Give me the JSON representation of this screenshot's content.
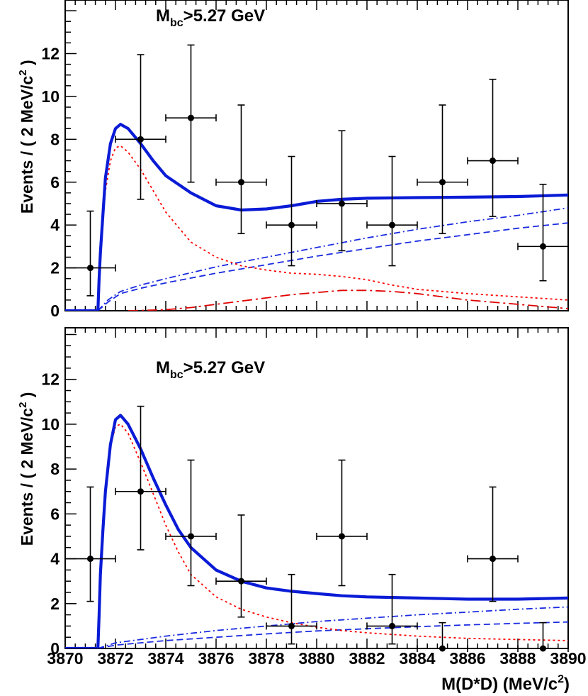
{
  "chart_data": [
    {
      "type": "scatter",
      "annotation": "M_bc>5.27 GeV",
      "annotation_main": "M",
      "annotation_sub": "bc",
      "annotation_rest": ">5.27 GeV",
      "ylabel_main": "Events / ( 2 MeV/c",
      "ylabel_sup": "2",
      "ylabel_close": " )",
      "xlim": [
        3870,
        3890
      ],
      "ylim": [
        0,
        14
      ],
      "x_ticks": [
        3870,
        3872,
        3874,
        3876,
        3878,
        3880,
        3882,
        3884,
        3886,
        3888,
        3890
      ],
      "y_ticks": [
        0,
        2,
        4,
        6,
        8,
        10,
        12
      ],
      "y_tick_labels": [
        "0",
        "2",
        "4",
        "6",
        "8",
        "10",
        "12"
      ],
      "points": [
        {
          "x": 3871,
          "y": 2,
          "yerr_low": 1.3,
          "yerr_high": 2.65
        },
        {
          "x": 3873,
          "y": 8,
          "yerr_low": 2.8,
          "yerr_high": 3.95
        },
        {
          "x": 3875,
          "y": 9,
          "yerr_low": 3.0,
          "yerr_high": 3.4
        },
        {
          "x": 3877,
          "y": 6,
          "yerr_low": 2.4,
          "yerr_high": 3.6
        },
        {
          "x": 3879,
          "y": 4,
          "yerr_low": 1.9,
          "yerr_high": 3.2
        },
        {
          "x": 3881,
          "y": 5,
          "yerr_low": 2.2,
          "yerr_high": 3.4
        },
        {
          "x": 3883,
          "y": 4,
          "yerr_low": 1.9,
          "yerr_high": 3.2
        },
        {
          "x": 3885,
          "y": 6,
          "yerr_low": 2.4,
          "yerr_high": 3.6
        },
        {
          "x": 3887,
          "y": 7,
          "yerr_low": 2.6,
          "yerr_high": 3.8
        },
        {
          "x": 3889,
          "y": 3,
          "yerr_low": 1.6,
          "yerr_high": 2.9
        }
      ],
      "curves": {
        "total": [
          [
            3870,
            0
          ],
          [
            3871.3,
            0
          ],
          [
            3871.35,
            1.5
          ],
          [
            3871.4,
            2.7
          ],
          [
            3871.5,
            4.5
          ],
          [
            3871.6,
            6.2
          ],
          [
            3871.8,
            7.8
          ],
          [
            3872.0,
            8.5
          ],
          [
            3872.2,
            8.7
          ],
          [
            3872.5,
            8.5
          ],
          [
            3873,
            7.8
          ],
          [
            3873.5,
            7.0
          ],
          [
            3874,
            6.3
          ],
          [
            3875,
            5.5
          ],
          [
            3876,
            4.9
          ],
          [
            3877,
            4.7
          ],
          [
            3878,
            4.75
          ],
          [
            3879,
            4.9
          ],
          [
            3880,
            5.1
          ],
          [
            3881,
            5.2
          ],
          [
            3882,
            5.25
          ],
          [
            3884,
            5.28
          ],
          [
            3886,
            5.3
          ],
          [
            3888,
            5.33
          ],
          [
            3890,
            5.4
          ]
        ],
        "signal_red": [
          [
            3870,
            0
          ],
          [
            3871.3,
            0
          ],
          [
            3871.35,
            1.5
          ],
          [
            3871.4,
            2.7
          ],
          [
            3871.5,
            4.3
          ],
          [
            3871.6,
            5.6
          ],
          [
            3871.8,
            7.0
          ],
          [
            3872.0,
            7.6
          ],
          [
            3872.2,
            7.7
          ],
          [
            3872.5,
            7.4
          ],
          [
            3873,
            6.6
          ],
          [
            3873.5,
            5.6
          ],
          [
            3874,
            4.6
          ],
          [
            3875,
            3.2
          ],
          [
            3876,
            2.5
          ],
          [
            3877,
            2.1
          ],
          [
            3878,
            1.9
          ],
          [
            3879,
            1.75
          ],
          [
            3880,
            1.7
          ],
          [
            3881,
            1.6
          ],
          [
            3882,
            1.45
          ],
          [
            3883,
            1.2
          ],
          [
            3884,
            1.0
          ],
          [
            3886,
            0.8
          ],
          [
            3888,
            0.65
          ],
          [
            3890,
            0.5
          ]
        ],
        "bg_dashdot_blue": [
          [
            3871.3,
            0
          ],
          [
            3871.7,
            0.5
          ],
          [
            3872.2,
            0.9
          ],
          [
            3873,
            1.2
          ],
          [
            3874,
            1.5
          ],
          [
            3876,
            2.05
          ],
          [
            3878,
            2.5
          ],
          [
            3880,
            2.95
          ],
          [
            3882,
            3.4
          ],
          [
            3884,
            3.8
          ],
          [
            3886,
            4.15
          ],
          [
            3888,
            4.45
          ],
          [
            3890,
            4.8
          ]
        ],
        "bg_dashed_blue": [
          [
            3871.3,
            0
          ],
          [
            3871.7,
            0.4
          ],
          [
            3872.2,
            0.8
          ],
          [
            3873,
            1.05
          ],
          [
            3874,
            1.3
          ],
          [
            3876,
            1.75
          ],
          [
            3878,
            2.15
          ],
          [
            3880,
            2.55
          ],
          [
            3882,
            2.9
          ],
          [
            3884,
            3.25
          ],
          [
            3886,
            3.55
          ],
          [
            3888,
            3.85
          ],
          [
            3890,
            4.1
          ]
        ],
        "bg_dashdot_red": [
          [
            3872.5,
            0
          ],
          [
            3874,
            0.05
          ],
          [
            3875,
            0.15
          ],
          [
            3876,
            0.3
          ],
          [
            3877,
            0.45
          ],
          [
            3878,
            0.6
          ],
          [
            3879,
            0.75
          ],
          [
            3880,
            0.85
          ],
          [
            3881,
            0.95
          ],
          [
            3882,
            0.95
          ],
          [
            3883,
            0.9
          ],
          [
            3884,
            0.8
          ],
          [
            3885,
            0.65
          ],
          [
            3886,
            0.5
          ],
          [
            3887,
            0.4
          ],
          [
            3888,
            0.3
          ],
          [
            3889,
            0.2
          ],
          [
            3890,
            0.1
          ]
        ]
      }
    },
    {
      "type": "scatter",
      "annotation": "M_bc>5.27 GeV",
      "annotation_main": "M",
      "annotation_sub": "bc",
      "annotation_rest": ">5.27 GeV",
      "ylabel_main": "Events / ( 2 MeV/c",
      "ylabel_sup": "2",
      "ylabel_close": " )",
      "xlabel_main": "M(D*D) (MeV/c",
      "xlabel_sup": "2",
      "xlabel_close": ")",
      "xlim": [
        3870,
        3890
      ],
      "ylim": [
        0,
        14
      ],
      "x_ticks": [
        3870,
        3872,
        3874,
        3876,
        3878,
        3880,
        3882,
        3884,
        3886,
        3888,
        3890
      ],
      "x_tick_labels": [
        "3870",
        "3872",
        "3874",
        "3876",
        "3878",
        "3880",
        "3882",
        "3884",
        "3886",
        "3888",
        "3890"
      ],
      "y_ticks": [
        0,
        2,
        4,
        6,
        8,
        10,
        12
      ],
      "y_tick_labels": [
        "0",
        "2",
        "4",
        "6",
        "8",
        "10",
        "12"
      ],
      "points": [
        {
          "x": 3871,
          "y": 4,
          "yerr_low": 1.9,
          "yerr_high": 3.2
        },
        {
          "x": 3873,
          "y": 7,
          "yerr_low": 2.6,
          "yerr_high": 3.8
        },
        {
          "x": 3875,
          "y": 5,
          "yerr_low": 2.2,
          "yerr_high": 3.4
        },
        {
          "x": 3877,
          "y": 3,
          "yerr_low": 1.6,
          "yerr_high": 2.95
        },
        {
          "x": 3879,
          "y": 1,
          "yerr_low": 0.8,
          "yerr_high": 2.3
        },
        {
          "x": 3881,
          "y": 5,
          "yerr_low": 2.2,
          "yerr_high": 3.4
        },
        {
          "x": 3883,
          "y": 1,
          "yerr_low": 0.8,
          "yerr_high": 2.3
        },
        {
          "x": 3885,
          "y": 0,
          "yerr_low": 0,
          "yerr_high": 1.15
        },
        {
          "x": 3887,
          "y": 4,
          "yerr_low": 1.9,
          "yerr_high": 3.2
        },
        {
          "x": 3889,
          "y": 0,
          "yerr_low": 0,
          "yerr_high": 1.15
        }
      ],
      "curves": {
        "total": [
          [
            3870,
            0
          ],
          [
            3871.3,
            0
          ],
          [
            3871.35,
            1.5
          ],
          [
            3871.4,
            3.3
          ],
          [
            3871.5,
            5.3
          ],
          [
            3871.6,
            7.0
          ],
          [
            3871.8,
            9.1
          ],
          [
            3872.0,
            10.2
          ],
          [
            3872.2,
            10.4
          ],
          [
            3872.5,
            10.0
          ],
          [
            3873,
            8.9
          ],
          [
            3873.5,
            7.6
          ],
          [
            3874,
            6.4
          ],
          [
            3874.5,
            5.3
          ],
          [
            3875,
            4.5
          ],
          [
            3876,
            3.5
          ],
          [
            3877,
            3.0
          ],
          [
            3878,
            2.7
          ],
          [
            3879,
            2.55
          ],
          [
            3880,
            2.45
          ],
          [
            3881,
            2.35
          ],
          [
            3882,
            2.3
          ],
          [
            3884,
            2.25
          ],
          [
            3886,
            2.2
          ],
          [
            3888,
            2.2
          ],
          [
            3890,
            2.25
          ]
        ],
        "signal_red": [
          [
            3870,
            0
          ],
          [
            3871.3,
            0
          ],
          [
            3871.35,
            1.5
          ],
          [
            3871.4,
            3.2
          ],
          [
            3871.5,
            5.2
          ],
          [
            3871.6,
            6.8
          ],
          [
            3871.8,
            9.0
          ],
          [
            3872.0,
            9.9
          ],
          [
            3872.2,
            10.0
          ],
          [
            3872.5,
            9.6
          ],
          [
            3873,
            8.3
          ],
          [
            3873.5,
            6.9
          ],
          [
            3874,
            5.5
          ],
          [
            3874.5,
            4.3
          ],
          [
            3875,
            3.3
          ],
          [
            3876,
            2.3
          ],
          [
            3877,
            1.75
          ],
          [
            3878,
            1.4
          ],
          [
            3879,
            1.15
          ],
          [
            3880,
            0.95
          ],
          [
            3881,
            0.8
          ],
          [
            3882,
            0.7
          ],
          [
            3884,
            0.55
          ],
          [
            3886,
            0.45
          ],
          [
            3888,
            0.4
          ],
          [
            3890,
            0.35
          ]
        ],
        "bg_dashdot_blue": [
          [
            3871.3,
            0
          ],
          [
            3872,
            0.25
          ],
          [
            3874,
            0.55
          ],
          [
            3876,
            0.8
          ],
          [
            3878,
            1.0
          ],
          [
            3880,
            1.2
          ],
          [
            3882,
            1.35
          ],
          [
            3884,
            1.5
          ],
          [
            3886,
            1.62
          ],
          [
            3888,
            1.75
          ],
          [
            3890,
            1.85
          ]
        ],
        "bg_dashed_blue": [
          [
            3871.3,
            0
          ],
          [
            3872,
            0.15
          ],
          [
            3874,
            0.35
          ],
          [
            3876,
            0.5
          ],
          [
            3878,
            0.65
          ],
          [
            3880,
            0.78
          ],
          [
            3882,
            0.88
          ],
          [
            3884,
            0.97
          ],
          [
            3886,
            1.05
          ],
          [
            3888,
            1.12
          ],
          [
            3890,
            1.18
          ]
        ]
      }
    }
  ]
}
